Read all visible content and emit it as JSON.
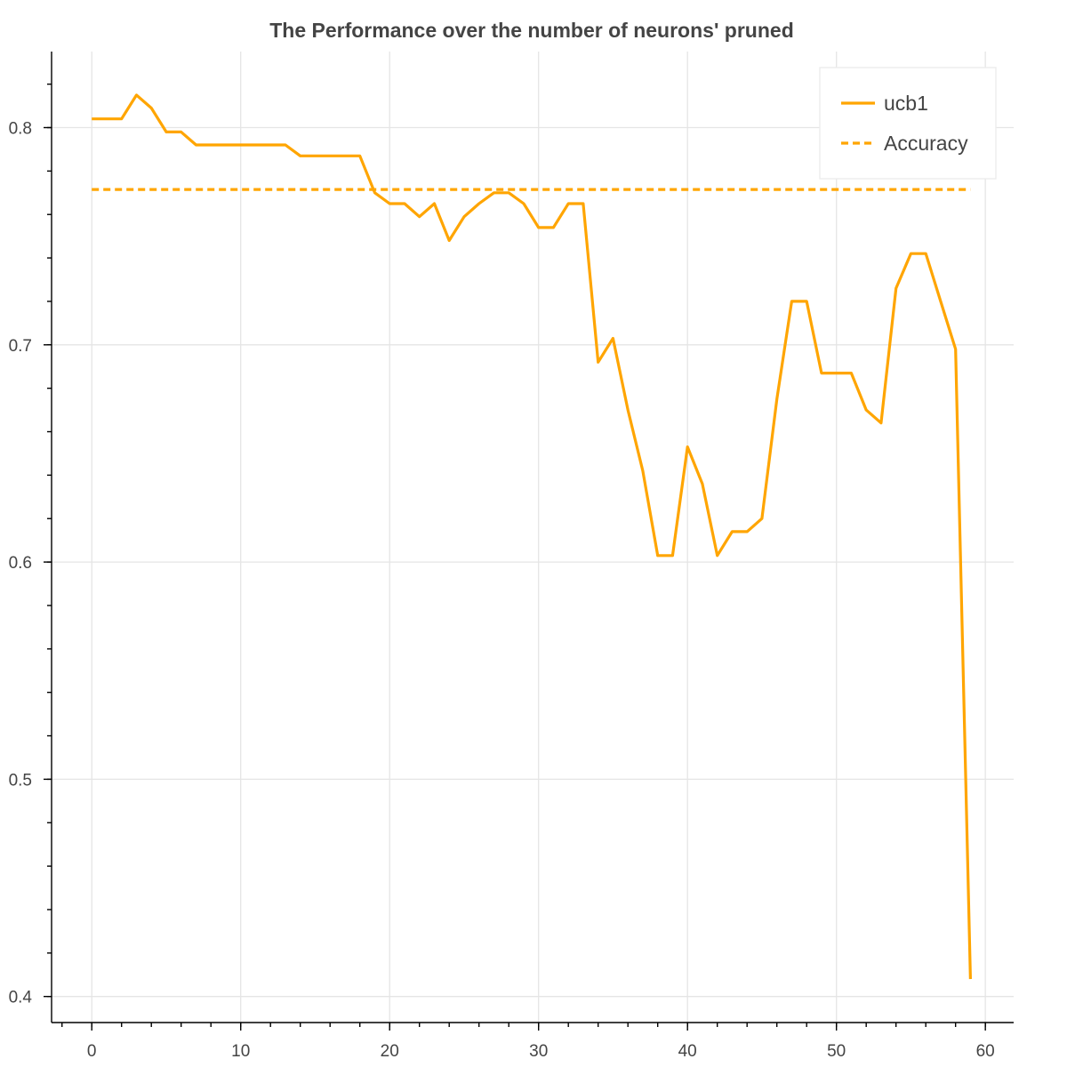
{
  "chart_data": {
    "type": "line",
    "title": "The Performance over the number of neurons' pruned",
    "xlabel": "",
    "ylabel": "",
    "xlim": [
      -2.7,
      61.9
    ],
    "ylim": [
      0.388,
      0.835
    ],
    "x_ticks": [
      0,
      10,
      20,
      30,
      40,
      50,
      60
    ],
    "y_ticks": [
      0.4,
      0.5,
      0.6,
      0.7,
      0.8
    ],
    "x_ticks_minor_step": 2,
    "y_ticks_minor_step": 0.02,
    "x_tick_labels": [
      "0",
      "10",
      "20",
      "30",
      "40",
      "50",
      "60"
    ],
    "y_tick_labels": [
      "0.4",
      "0.5",
      "0.6",
      "0.7",
      "0.8"
    ],
    "grid": true,
    "legend_position": "top-right",
    "series": [
      {
        "name": "ucb1",
        "style": "solid",
        "color": "#FFA500",
        "x": [
          0,
          1,
          2,
          3,
          4,
          5,
          6,
          7,
          8,
          9,
          10,
          11,
          12,
          13,
          14,
          15,
          16,
          17,
          18,
          19,
          20,
          21,
          22,
          23,
          24,
          25,
          26,
          27,
          28,
          29,
          30,
          31,
          32,
          33,
          34,
          35,
          36,
          37,
          38,
          39,
          40,
          41,
          42,
          43,
          44,
          45,
          46,
          47,
          48,
          49,
          50,
          51,
          52,
          53,
          54,
          55,
          56,
          57,
          58,
          59
        ],
        "y": [
          0.804,
          0.804,
          0.804,
          0.815,
          0.809,
          0.798,
          0.798,
          0.792,
          0.792,
          0.792,
          0.792,
          0.792,
          0.792,
          0.792,
          0.787,
          0.787,
          0.787,
          0.787,
          0.787,
          0.77,
          0.765,
          0.765,
          0.759,
          0.765,
          0.748,
          0.759,
          0.765,
          0.77,
          0.77,
          0.765,
          0.754,
          0.754,
          0.765,
          0.765,
          0.692,
          0.703,
          0.67,
          0.642,
          0.603,
          0.603,
          0.653,
          0.636,
          0.603,
          0.614,
          0.614,
          0.62,
          0.675,
          0.72,
          0.72,
          0.687,
          0.687,
          0.687,
          0.67,
          0.664,
          0.726,
          0.742,
          0.742,
          0.72,
          0.698,
          0.408
        ]
      },
      {
        "name": "Accuracy",
        "style": "dashed",
        "color": "#FFA500",
        "x": [
          0,
          59
        ],
        "y": [
          0.7715,
          0.7715
        ]
      }
    ]
  }
}
